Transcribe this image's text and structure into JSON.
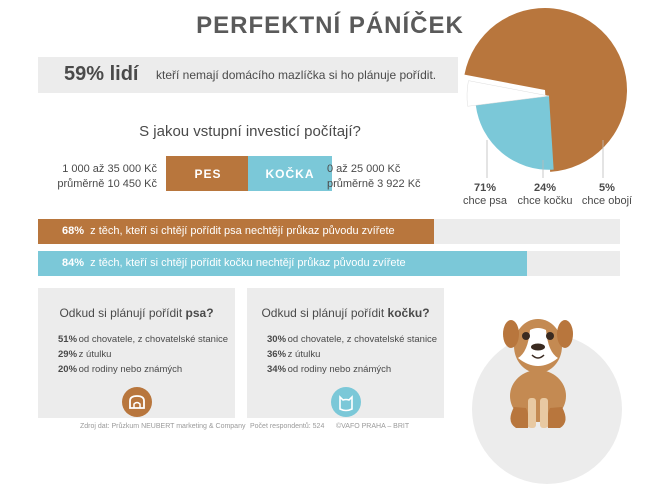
{
  "title": "PERFEKTNÍ PÁNÍČEK",
  "headline": {
    "percent": "59% lidí",
    "text": "kteří nemají domácího mazlíčka si ho plánuje pořídit."
  },
  "question": "S jakou vstupní investicí počítají?",
  "dog": {
    "range": "1 000 až 35 000 Kč",
    "avg": "průměrně 10 450 Kč",
    "label": "PES"
  },
  "cat": {
    "range": "0 až 25 000 Kč",
    "avg": "průměrně 3 922 Kč",
    "label": "KOČKA"
  },
  "pie": {
    "slices": [
      {
        "pct": "71%",
        "label": "chce psa",
        "value": 71,
        "color": "#b8763d"
      },
      {
        "pct": "24%",
        "label": "chce kočku",
        "value": 24,
        "color": "#7bc8d8"
      },
      {
        "pct": "5%",
        "label": "chce obojí",
        "value": 5,
        "color": "#ffffff"
      }
    ]
  },
  "bars": [
    {
      "pct": "68%",
      "text": "z těch, kteří si chtějí pořídit psa nechtějí průkaz původu zvířete",
      "value": 68,
      "color": "#b8763d"
    },
    {
      "pct": "84%",
      "text": "z těch, kteří si chtějí pořídit kočku nechtějí průkaz původu zvířete",
      "value": 84,
      "color": "#7bc8d8"
    }
  ],
  "panel_dog": {
    "heading_pre": "Odkud si plánují pořídit",
    "heading_bold": "psa?",
    "items": [
      {
        "pct": "51%",
        "text": "od chovatele, z chovatelské stanice"
      },
      {
        "pct": "29%",
        "text": "z útulku"
      },
      {
        "pct": "20%",
        "text": "od rodiny nebo známých"
      }
    ]
  },
  "panel_cat": {
    "heading_pre": "Odkud si plánují pořídit",
    "heading_bold": "kočku?",
    "items": [
      {
        "pct": "30%",
        "text": "od chovatele, z chovatelské stanice"
      },
      {
        "pct": "36%",
        "text": "z útulku"
      },
      {
        "pct": "34%",
        "text": "od rodiny nebo známých"
      }
    ]
  },
  "footer": {
    "source": "Zdroj dat: Průzkum NEUBERT marketing & Company",
    "respondents": "Počet respondentů: 524",
    "credit": "©VAFO PRAHA – BRIT"
  },
  "colors": {
    "dog": "#b8763d",
    "cat": "#7bc8d8",
    "panel": "#ececec"
  }
}
